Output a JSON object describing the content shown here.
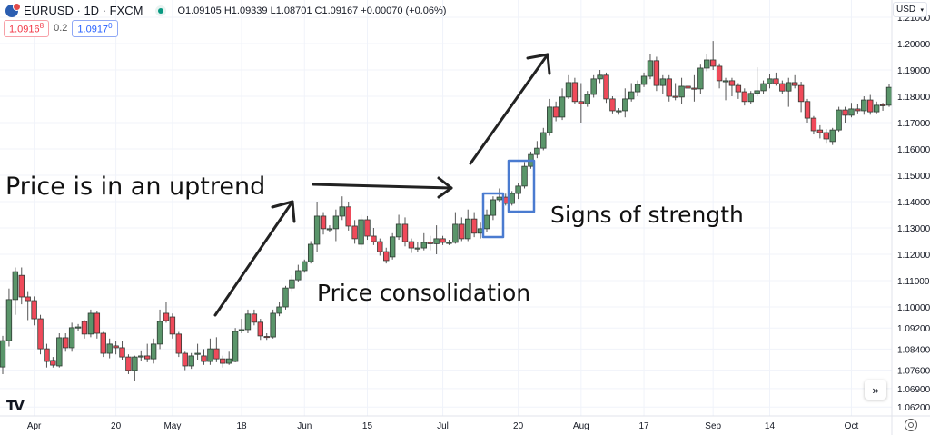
{
  "header": {
    "symbol": "EURUSD · 1D · FXCM",
    "ohlc": "O1.09105 H1.09339 L1.08701 C1.09167 +0.00070 (+0.06%)",
    "sell_price": "1.0916",
    "sell_price_sup": "8",
    "spread": "0.2",
    "buy_price": "1.0917",
    "buy_price_sup": "0",
    "currency": "USD",
    "market_status_color": "#089981"
  },
  "controls": {
    "scroll_label": "»",
    "settings_icon": "gear-icon",
    "logo": "TV"
  },
  "annotations": {
    "uptrend": "Price is in an uptrend",
    "consolidation": "Price consolidation",
    "strength": "Signs of strength",
    "box_color": "#4a7bd0"
  },
  "chart_data": {
    "type": "candlestick",
    "title": "",
    "xlabel": "",
    "ylabel": "",
    "ylim": [
      1.059,
      1.214
    ],
    "grid": true,
    "colors": {
      "up": "#5a956a",
      "down": "#ef4a5a",
      "outline": "#2f3a33"
    },
    "y_ticks": [
      "1.21000",
      "1.20000",
      "1.19000",
      "1.18000",
      "1.17000",
      "1.16000",
      "1.15000",
      "1.14000",
      "1.13000",
      "1.12000",
      "1.11000",
      "1.10000",
      "1.09200",
      "1.08400",
      "1.07600",
      "1.06900",
      "1.06200"
    ],
    "x_ticks": [
      {
        "label": "Apr",
        "bar": 5
      },
      {
        "label": "20",
        "bar": 18
      },
      {
        "label": "May",
        "bar": 27
      },
      {
        "label": "18",
        "bar": 38
      },
      {
        "label": "Jun",
        "bar": 48
      },
      {
        "label": "15",
        "bar": 58
      },
      {
        "label": "Jul",
        "bar": 70
      },
      {
        "label": "20",
        "bar": 82
      },
      {
        "label": "Aug",
        "bar": 92
      },
      {
        "label": "17",
        "bar": 102
      },
      {
        "label": "Sep",
        "bar": 113
      },
      {
        "label": "14",
        "bar": 122
      },
      {
        "label": "Oct",
        "bar": 135
      }
    ],
    "candles_ohlc": [
      [
        1.0772,
        1.089,
        1.0745,
        1.0872
      ],
      [
        1.0872,
        1.107,
        1.085,
        1.1028
      ],
      [
        1.1028,
        1.115,
        1.097,
        1.1134
      ],
      [
        1.112,
        1.115,
        1.101,
        1.1038
      ],
      [
        1.1038,
        1.106,
        1.095,
        1.1024
      ],
      [
        1.1024,
        1.104,
        1.093,
        1.0955
      ],
      [
        1.0955,
        1.097,
        1.082,
        1.0841
      ],
      [
        1.0841,
        1.086,
        1.077,
        1.0793
      ],
      [
        1.0797,
        1.081,
        1.077,
        1.0779
      ],
      [
        1.0776,
        1.09,
        1.077,
        1.0883
      ],
      [
        1.0883,
        1.09,
        1.083,
        1.0845
      ],
      [
        1.0845,
        1.094,
        1.083,
        1.0921
      ],
      [
        1.0921,
        1.0935,
        1.091,
        1.0924
      ],
      [
        1.0945,
        1.095,
        1.088,
        1.0897
      ],
      [
        1.0897,
        1.099,
        1.0885,
        1.0976
      ],
      [
        1.0976,
        1.0985,
        1.088,
        1.09
      ],
      [
        1.09,
        1.0905,
        1.081,
        1.0824
      ],
      [
        1.0824,
        1.088,
        1.0805,
        1.0859
      ],
      [
        1.0852,
        1.087,
        1.082,
        1.0845
      ],
      [
        1.0845,
        1.087,
        1.08,
        1.081
      ],
      [
        1.081,
        1.082,
        1.0745,
        1.0759
      ],
      [
        1.0759,
        1.0815,
        1.072,
        1.081
      ],
      [
        1.081,
        1.0835,
        1.0795,
        1.0814
      ],
      [
        1.0814,
        1.086,
        1.079,
        1.0803
      ],
      [
        1.0803,
        1.088,
        1.0785,
        1.0859
      ],
      [
        1.0859,
        1.099,
        1.084,
        1.0945
      ],
      [
        1.0976,
        1.102,
        1.094,
        1.0948
      ],
      [
        1.0962,
        1.0975,
        1.088,
        1.0897
      ],
      [
        1.0897,
        1.0905,
        1.081,
        1.0824
      ],
      [
        1.0824,
        1.083,
        1.076,
        1.0776
      ],
      [
        1.0776,
        1.0825,
        1.0765,
        1.0814
      ],
      [
        1.082,
        1.086,
        1.08,
        1.0824
      ],
      [
        1.0814,
        1.084,
        1.078,
        1.0793
      ],
      [
        1.0793,
        1.088,
        1.078,
        1.0841
      ],
      [
        1.0841,
        1.0885,
        1.079,
        1.0803
      ],
      [
        1.0803,
        1.0815,
        1.077,
        1.0786
      ],
      [
        1.0786,
        1.083,
        1.078,
        1.0803
      ],
      [
        1.0793,
        1.092,
        1.079,
        1.0907
      ],
      [
        1.091,
        1.0955,
        1.09,
        1.0914
      ],
      [
        1.0914,
        1.099,
        1.09,
        1.0973
      ],
      [
        1.0973,
        1.099,
        1.093,
        1.0942
      ],
      [
        1.0942,
        1.0955,
        1.0875,
        1.089
      ],
      [
        1.0888,
        1.09,
        1.0875,
        1.0886
      ],
      [
        1.0886,
        1.099,
        1.088,
        1.0976
      ],
      [
        1.0976,
        1.102,
        1.0965,
        1.1
      ],
      [
        1.1,
        1.108,
        1.099,
        1.1072
      ],
      [
        1.1072,
        1.112,
        1.106,
        1.1103
      ],
      [
        1.1103,
        1.116,
        1.1095,
        1.1138
      ],
      [
        1.1138,
        1.118,
        1.113,
        1.1172
      ],
      [
        1.1172,
        1.125,
        1.1165,
        1.1238
      ],
      [
        1.1238,
        1.14,
        1.121,
        1.1345
      ],
      [
        1.1345,
        1.136,
        1.1275,
        1.1297
      ],
      [
        1.1297,
        1.131,
        1.1285,
        1.1297
      ],
      [
        1.1297,
        1.137,
        1.125,
        1.1345
      ],
      [
        1.1345,
        1.142,
        1.133,
        1.138
      ],
      [
        1.138,
        1.14,
        1.129,
        1.1307
      ],
      [
        1.1307,
        1.133,
        1.124,
        1.1259
      ],
      [
        1.1238,
        1.135,
        1.122,
        1.1331
      ],
      [
        1.1331,
        1.1345,
        1.1255,
        1.1269
      ],
      [
        1.1269,
        1.13,
        1.1235,
        1.1248
      ],
      [
        1.1248,
        1.126,
        1.1195,
        1.121
      ],
      [
        1.121,
        1.1225,
        1.1165,
        1.1176
      ],
      [
        1.119,
        1.128,
        1.118,
        1.1266
      ],
      [
        1.1266,
        1.135,
        1.1255,
        1.1314
      ],
      [
        1.1314,
        1.134,
        1.123,
        1.1248
      ],
      [
        1.1248,
        1.126,
        1.1205,
        1.1224
      ],
      [
        1.1224,
        1.1245,
        1.121,
        1.1224
      ],
      [
        1.1224,
        1.128,
        1.1215,
        1.1245
      ],
      [
        1.1245,
        1.127,
        1.1215,
        1.124
      ],
      [
        1.124,
        1.131,
        1.12,
        1.1259
      ],
      [
        1.1259,
        1.127,
        1.1235,
        1.1245
      ],
      [
        1.1245,
        1.1255,
        1.1235,
        1.1245
      ],
      [
        1.1245,
        1.136,
        1.124,
        1.1314
      ],
      [
        1.1314,
        1.134,
        1.125,
        1.1259
      ],
      [
        1.1259,
        1.137,
        1.125,
        1.1334
      ],
      [
        1.1334,
        1.136,
        1.1265,
        1.128
      ],
      [
        1.128,
        1.132,
        1.126,
        1.1297
      ],
      [
        1.1297,
        1.137,
        1.1285,
        1.1348
      ],
      [
        1.1348,
        1.142,
        1.133,
        1.1407
      ],
      [
        1.1407,
        1.145,
        1.14,
        1.1417
      ],
      [
        1.1417,
        1.143,
        1.1385,
        1.1393
      ],
      [
        1.1393,
        1.144,
        1.1385,
        1.1431
      ],
      [
        1.1431,
        1.147,
        1.141,
        1.1459
      ],
      [
        1.1459,
        1.155,
        1.145,
        1.1534
      ],
      [
        1.1534,
        1.159,
        1.1525,
        1.1579
      ],
      [
        1.1579,
        1.163,
        1.1565,
        1.1603
      ],
      [
        1.1603,
        1.168,
        1.1595,
        1.1662
      ],
      [
        1.1662,
        1.179,
        1.165,
        1.1759
      ],
      [
        1.1759,
        1.178,
        1.1705,
        1.1721
      ],
      [
        1.1721,
        1.183,
        1.171,
        1.1797
      ],
      [
        1.1797,
        1.188,
        1.179,
        1.1852
      ],
      [
        1.1852,
        1.187,
        1.177,
        1.178
      ],
      [
        1.178,
        1.185,
        1.17,
        1.1772
      ],
      [
        1.1772,
        1.182,
        1.176,
        1.1807
      ],
      [
        1.1807,
        1.188,
        1.1795,
        1.1866
      ],
      [
        1.1866,
        1.19,
        1.185,
        1.188
      ],
      [
        1.188,
        1.189,
        1.1775,
        1.179
      ],
      [
        1.179,
        1.18,
        1.1735,
        1.1745
      ],
      [
        1.1745,
        1.1755,
        1.173,
        1.1745
      ],
      [
        1.1745,
        1.183,
        1.172,
        1.179
      ],
      [
        1.179,
        1.185,
        1.178,
        1.1817
      ],
      [
        1.1817,
        1.186,
        1.18,
        1.1845
      ],
      [
        1.1845,
        1.189,
        1.1835,
        1.1876
      ],
      [
        1.1876,
        1.196,
        1.1865,
        1.1935
      ],
      [
        1.1935,
        1.195,
        1.182,
        1.1841
      ],
      [
        1.1841,
        1.188,
        1.181,
        1.1866
      ],
      [
        1.1866,
        1.188,
        1.178,
        1.18
      ],
      [
        1.18,
        1.185,
        1.1785,
        1.1797
      ],
      [
        1.1797,
        1.187,
        1.177,
        1.1838
      ],
      [
        1.1838,
        1.186,
        1.179,
        1.1831
      ],
      [
        1.1831,
        1.188,
        1.178,
        1.1828
      ],
      [
        1.1828,
        1.192,
        1.181,
        1.1907
      ],
      [
        1.1907,
        1.196,
        1.1895,
        1.1938
      ],
      [
        1.1938,
        1.201,
        1.19,
        1.1914
      ],
      [
        1.1914,
        1.1925,
        1.183,
        1.1859
      ],
      [
        1.1859,
        1.187,
        1.1785,
        1.1859
      ],
      [
        1.1859,
        1.187,
        1.18,
        1.1841
      ],
      [
        1.1841,
        1.185,
        1.179,
        1.1817
      ],
      [
        1.1817,
        1.183,
        1.1765,
        1.178
      ],
      [
        1.178,
        1.182,
        1.177,
        1.1811
      ],
      [
        1.1811,
        1.191,
        1.18,
        1.1821
      ],
      [
        1.1821,
        1.186,
        1.181,
        1.1848
      ],
      [
        1.1848,
        1.1885,
        1.183,
        1.1866
      ],
      [
        1.1866,
        1.189,
        1.184,
        1.1848
      ],
      [
        1.1848,
        1.186,
        1.181,
        1.182
      ],
      [
        1.182,
        1.187,
        1.176,
        1.1852
      ],
      [
        1.1852,
        1.188,
        1.183,
        1.1841
      ],
      [
        1.1841,
        1.1855,
        1.174,
        1.178
      ],
      [
        1.178,
        1.179,
        1.17,
        1.1717
      ],
      [
        1.1717,
        1.1725,
        1.1655,
        1.1669
      ],
      [
        1.1672,
        1.169,
        1.164,
        1.1662
      ],
      [
        1.1662,
        1.1675,
        1.162,
        1.1638
      ],
      [
        1.1628,
        1.168,
        1.1615,
        1.1672
      ],
      [
        1.1672,
        1.176,
        1.1665,
        1.1748
      ],
      [
        1.1748,
        1.176,
        1.17,
        1.1728
      ],
      [
        1.1728,
        1.1775,
        1.172,
        1.1752
      ],
      [
        1.1752,
        1.177,
        1.1735,
        1.1745
      ],
      [
        1.1745,
        1.18,
        1.173,
        1.1786
      ],
      [
        1.1786,
        1.1805,
        1.173,
        1.1741
      ],
      [
        1.1741,
        1.178,
        1.1735,
        1.1766
      ],
      [
        1.1768,
        1.1775,
        1.1745,
        1.1766
      ],
      [
        1.1766,
        1.1845,
        1.176,
        1.1834
      ]
    ]
  }
}
